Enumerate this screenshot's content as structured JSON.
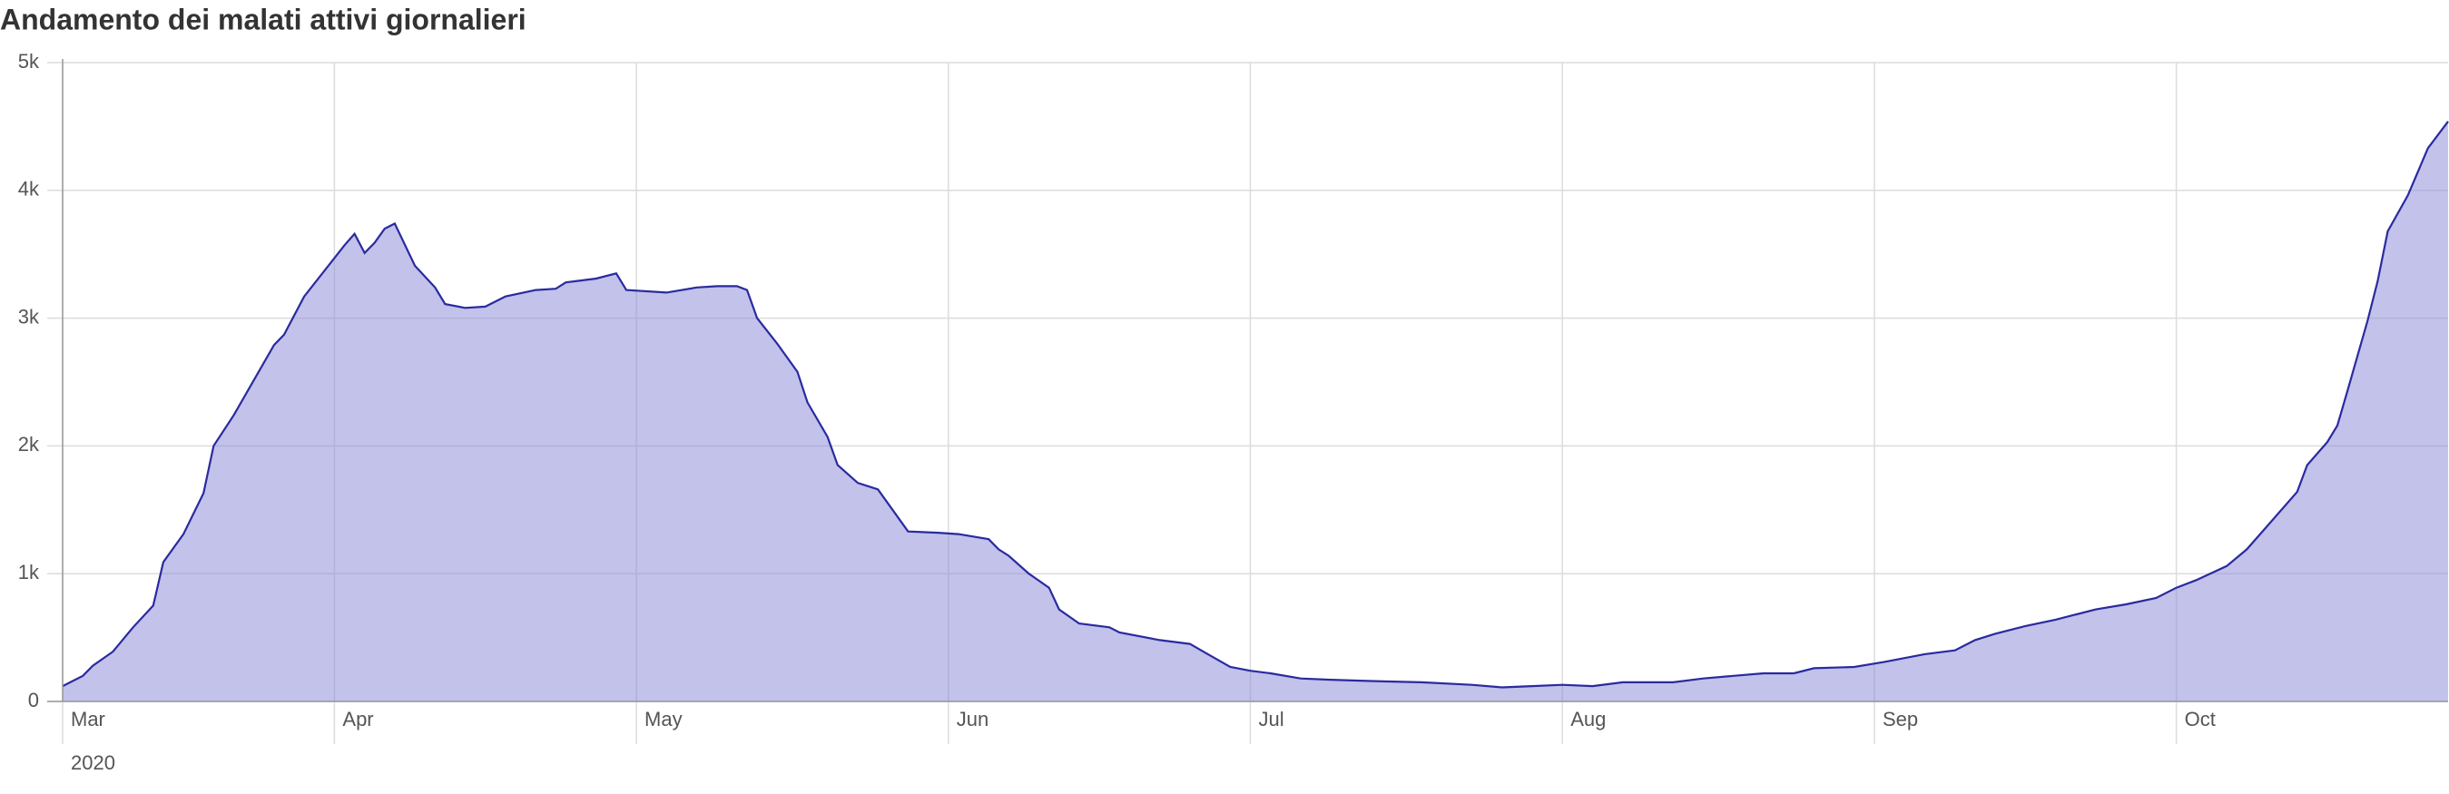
{
  "chart_data": {
    "type": "area",
    "title": "Andamento dei malati attivi giornalieri",
    "year_label": "2020",
    "x": [
      65,
      67,
      68,
      70,
      72,
      74,
      75,
      77,
      79,
      80,
      82,
      86,
      87,
      89,
      93,
      94,
      95,
      96,
      97,
      98,
      100,
      102,
      103,
      105,
      107,
      109,
      112,
      114,
      115,
      118,
      120,
      121,
      125,
      128,
      130,
      132,
      133,
      134,
      136,
      138,
      139,
      141,
      142,
      144,
      146,
      147,
      149,
      152,
      154,
      157,
      158,
      159,
      161,
      163,
      164,
      166,
      169,
      170,
      174,
      177,
      179,
      181,
      183,
      185,
      188,
      191,
      195,
      200,
      205,
      208,
      211,
      214,
      217,
      220,
      225,
      228,
      231,
      234,
      237,
      239,
      243,
      246,
      250,
      253,
      255,
      257,
      260,
      263,
      267,
      270,
      273,
      275,
      277,
      280,
      282,
      284,
      287,
      288,
      290,
      291,
      292,
      294,
      295,
      296,
      298,
      300,
      302
    ],
    "series": [
      {
        "color": "#2a2aa0",
        "fill": "#8a8ad8",
        "values": [
          120,
          200,
          280,
          390,
          580,
          750,
          1090,
          1310,
          1630,
          2000,
          2240,
          2790,
          2870,
          3170,
          3570,
          3660,
          3510,
          3590,
          3700,
          3740,
          3410,
          3240,
          3110,
          3080,
          3090,
          3170,
          3220,
          3230,
          3280,
          3310,
          3350,
          3220,
          3200,
          3240,
          3250,
          3250,
          3220,
          3000,
          2800,
          2580,
          2340,
          2070,
          1850,
          1710,
          1660,
          1550,
          1330,
          1320,
          1310,
          1270,
          1190,
          1140,
          1000,
          890,
          720,
          610,
          580,
          540,
          480,
          450,
          360,
          270,
          240,
          220,
          180,
          170,
          160,
          150,
          130,
          110,
          120,
          130,
          120,
          150,
          150,
          180,
          200,
          220,
          220,
          260,
          270,
          310,
          370,
          400,
          480,
          530,
          590,
          640,
          720,
          760,
          810,
          890,
          950,
          1060,
          1190,
          1370,
          1640,
          1850,
          2030,
          2160,
          2430,
          2980,
          3290,
          3680,
          3960,
          4330,
          4540
        ]
      }
    ],
    "xlim": [
      65,
      302
    ],
    "xticks": [
      {
        "value": 61,
        "label": "Mar"
      },
      {
        "value": 92,
        "label": "Apr"
      },
      {
        "value": 122,
        "label": "May"
      },
      {
        "value": 153,
        "label": "Jun"
      },
      {
        "value": 183,
        "label": "Jul"
      },
      {
        "value": 214,
        "label": "Aug"
      },
      {
        "value": 245,
        "label": "Sep"
      },
      {
        "value": 275,
        "label": "Oct"
      }
    ],
    "ylim": [
      0,
      5000
    ],
    "yticks": [
      0,
      {
        "value": 1000,
        "label": "1k"
      },
      {
        "value": 2000,
        "label": "2k"
      },
      {
        "value": 3000,
        "label": "3k"
      },
      {
        "value": 4000,
        "label": "4k"
      },
      {
        "value": 5000,
        "label": "5k"
      }
    ],
    "grid": true
  }
}
